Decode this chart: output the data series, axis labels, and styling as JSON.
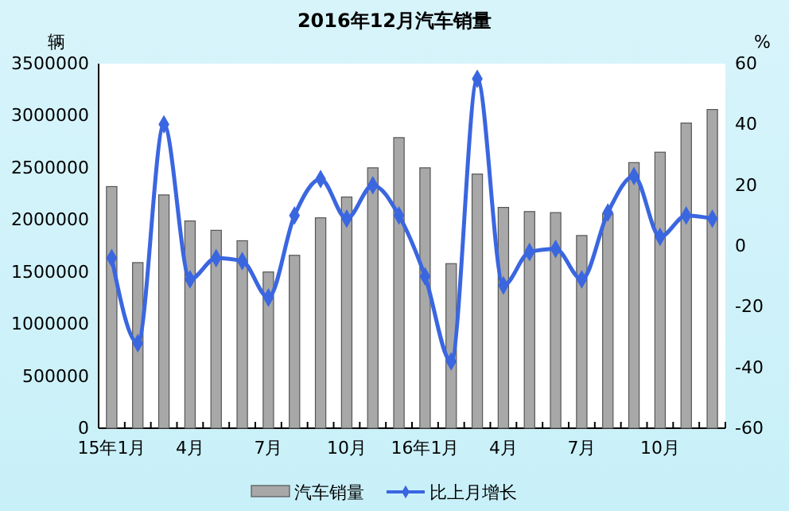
{
  "chart_data": {
    "type": "bar",
    "title": "2016年12月汽车销量",
    "ylabel": "辆",
    "y2label": "%",
    "categories": [
      "15年1月",
      null,
      null,
      "4月",
      null,
      null,
      "7月",
      null,
      null,
      "10月",
      null,
      null,
      "16年1月",
      null,
      null,
      "4月",
      null,
      null,
      "7月",
      null,
      null,
      "10月",
      null,
      null
    ],
    "series": [
      {
        "name": "汽车销量",
        "color": "#a8a8a8",
        "values": [
          2320000,
          1590000,
          2240000,
          1990000,
          1900000,
          1800000,
          1500000,
          1660000,
          2020000,
          2220000,
          2500000,
          2790000,
          2500000,
          1580000,
          2440000,
          2120000,
          2080000,
          2070000,
          1850000,
          2060000,
          2550000,
          2650000,
          2930000,
          3060000
        ]
      },
      {
        "name": "比上月增长",
        "type": "line",
        "axis": "y2",
        "color": "#3a66e0",
        "marker": "diamond",
        "values": [
          -4,
          -32,
          40,
          -11,
          -4,
          -5,
          -17,
          10,
          22,
          9,
          20,
          10,
          -10,
          -38,
          55,
          -13,
          -2,
          -1,
          -11,
          11,
          23,
          3,
          10,
          9
        ]
      }
    ],
    "ylim": [
      0,
      3500000
    ],
    "yticks": [
      0,
      500000,
      1000000,
      1500000,
      2000000,
      2500000,
      3000000,
      3500000
    ],
    "y2lim": [
      -60,
      60
    ],
    "y2ticks": [
      -60,
      -40,
      -20,
      0,
      20,
      40,
      60
    ],
    "legend": "bottom"
  }
}
